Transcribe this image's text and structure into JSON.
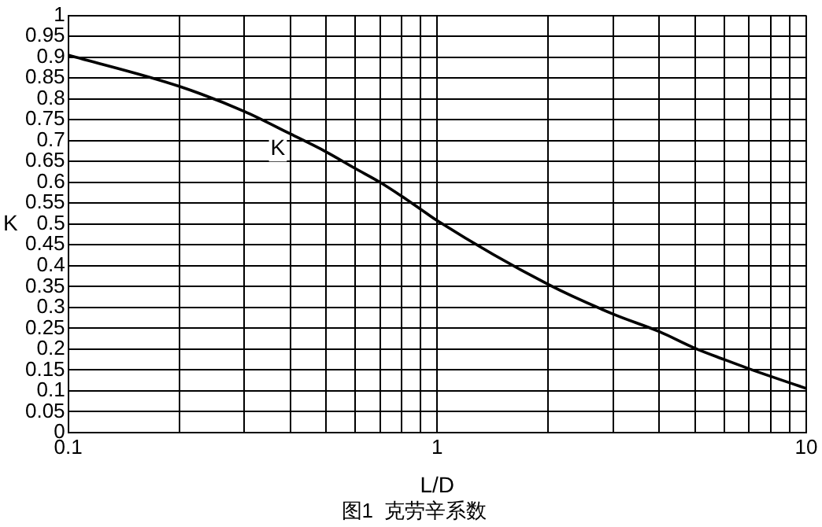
{
  "chart_data": {
    "type": "line",
    "title": "图1  克劳辛系数",
    "xlabel": "L/D",
    "ylabel": "K",
    "x": [
      0.1,
      0.2,
      0.3,
      0.4,
      0.5,
      0.6,
      0.7,
      0.8,
      0.9,
      1,
      2,
      3,
      4,
      5,
      6,
      7,
      8,
      10
    ],
    "series": [
      {
        "color": "#000000",
        "values": [
          0.905,
          0.83,
          0.77,
          0.716,
          0.673,
          0.633,
          0.6,
          0.567,
          0.536,
          0.508,
          0.355,
          0.284,
          0.242,
          0.202,
          0.175,
          0.153,
          0.135,
          0.106
        ]
      }
    ],
    "annotations": [
      {
        "text": "K",
        "x": 0.37,
        "y": 0.68
      }
    ],
    "log": "x",
    "xlim": [
      0.1,
      10
    ],
    "xticks": [
      0.1,
      {
        "value": 0.2,
        "label": null
      },
      {
        "value": 0.3,
        "label": null
      },
      {
        "value": 0.4,
        "label": null
      },
      {
        "value": 0.5,
        "label": null
      },
      {
        "value": 0.6,
        "label": null
      },
      {
        "value": 0.7,
        "label": null
      },
      {
        "value": 0.8,
        "label": null
      },
      {
        "value": 0.9,
        "label": null
      },
      1,
      {
        "value": 2,
        "label": null
      },
      {
        "value": 3,
        "label": null
      },
      {
        "value": 4,
        "label": null
      },
      {
        "value": 5,
        "label": null
      },
      {
        "value": 6,
        "label": null
      },
      {
        "value": 7,
        "label": null
      },
      {
        "value": 8,
        "label": null
      },
      {
        "value": 9,
        "label": null
      },
      10
    ],
    "ylim": [
      0,
      1
    ],
    "yticks": [
      0,
      0.05,
      0.1,
      0.15,
      0.2,
      0.25,
      0.3,
      0.35,
      0.4,
      0.45,
      0.5,
      0.55,
      0.6,
      0.65,
      0.7,
      0.75,
      0.8,
      0.85,
      0.9,
      0.95,
      1
    ],
    "grid": true,
    "legend": false,
    "marker": "none",
    "line_style": "solid"
  }
}
